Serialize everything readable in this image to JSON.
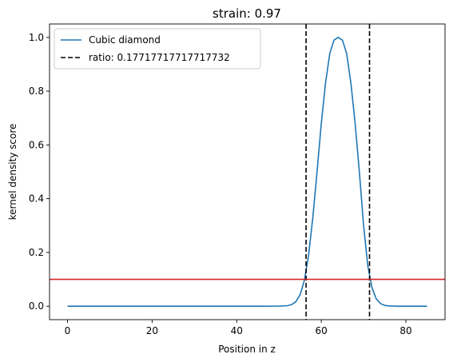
{
  "chart_data": {
    "type": "line",
    "title": "strain: 0.97",
    "xlabel": "Position in z",
    "ylabel": "kernel density score",
    "xlim": [
      -4.25,
      89.25
    ],
    "ylim": [
      -0.05,
      1.05
    ],
    "xticks": [
      0,
      20,
      40,
      60,
      80
    ],
    "xtick_labels": [
      "0",
      "20",
      "40",
      "60",
      "80"
    ],
    "yticks": [
      0.0,
      0.2,
      0.4,
      0.6,
      0.8,
      1.0
    ],
    "ytick_labels": [
      "0.0",
      "0.2",
      "0.4",
      "0.6",
      "0.8",
      "1.0"
    ],
    "grid": false,
    "legend_position": "top-left",
    "series": [
      {
        "name": "Cubic diamond",
        "style": "solid",
        "color": "#1f77b4",
        "x": [
          0,
          5,
          10,
          15,
          20,
          25,
          30,
          35,
          40,
          45,
          50,
          52,
          53,
          54,
          55,
          56,
          57,
          58,
          59,
          60,
          61,
          62,
          63,
          64,
          65,
          66,
          67,
          68,
          69,
          70,
          71,
          72,
          73,
          74,
          75,
          76,
          78,
          80,
          85
        ],
        "y": [
          0,
          0,
          0,
          0,
          0,
          0,
          0,
          0,
          0,
          0,
          0.0003,
          0.002,
          0.006,
          0.017,
          0.043,
          0.096,
          0.19,
          0.33,
          0.5,
          0.68,
          0.83,
          0.94,
          0.99,
          1.0,
          0.99,
          0.94,
          0.83,
          0.68,
          0.5,
          0.3,
          0.15,
          0.068,
          0.027,
          0.01,
          0.003,
          0.001,
          0,
          0,
          0
        ]
      }
    ],
    "vertical_lines": [
      {
        "x": 56.4,
        "color": "#000000",
        "style": "dashed",
        "legend": "ratio: 0.17717717717717732"
      },
      {
        "x": 71.4,
        "color": "#000000",
        "style": "dashed"
      }
    ],
    "horizontal_lines": [
      {
        "y": 0.1,
        "color": "#d62728",
        "style": "solid"
      }
    ],
    "legend": [
      {
        "label": "Cubic diamond",
        "style": "solid",
        "color": "#1f77b4"
      },
      {
        "label": "ratio: 0.17717717717717732",
        "style": "dashed",
        "color": "#000000"
      }
    ]
  }
}
